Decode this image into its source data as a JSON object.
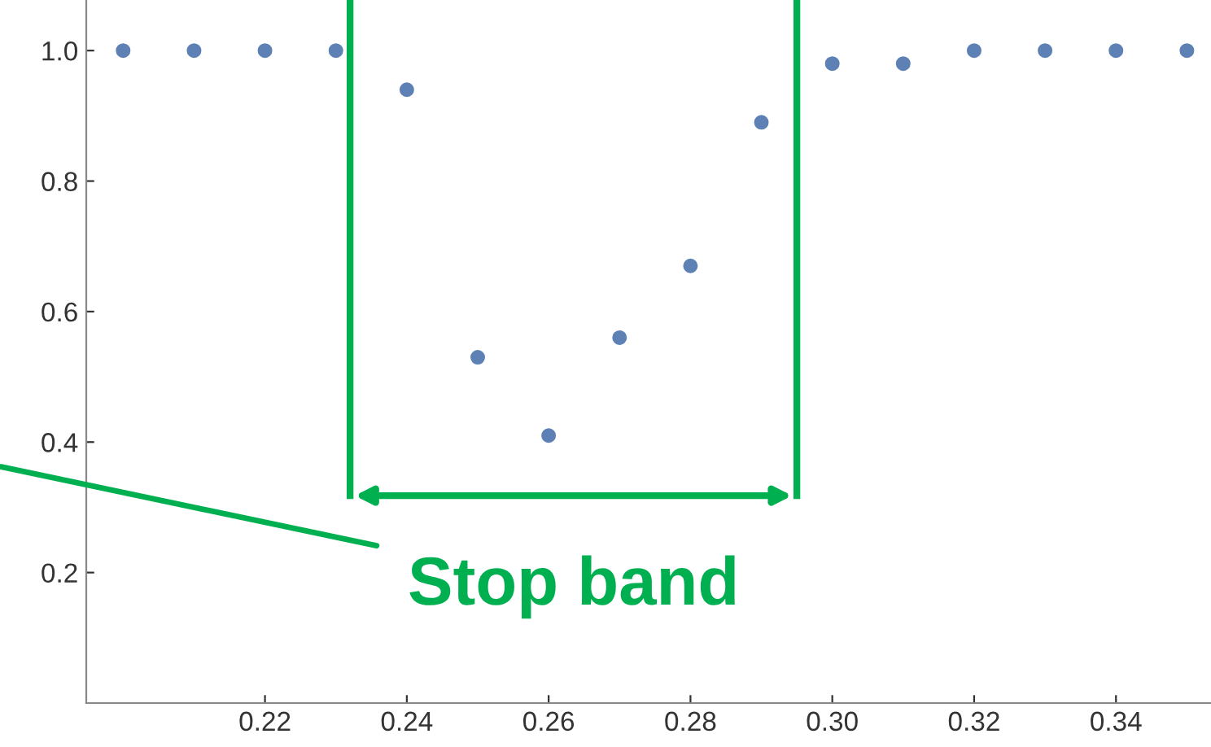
{
  "chart_data": {
    "type": "scatter",
    "x": [
      0.2,
      0.21,
      0.22,
      0.23,
      0.24,
      0.25,
      0.26,
      0.27,
      0.28,
      0.29,
      0.3,
      0.31,
      0.32,
      0.33,
      0.34,
      0.35
    ],
    "series": [
      {
        "color": "#5e81b5",
        "values": [
          1.0,
          1.0,
          1.0,
          1.0,
          0.94,
          0.53,
          0.41,
          0.56,
          0.67,
          0.89,
          0.98,
          0.98,
          1.0,
          1.0,
          1.0,
          1.0
        ]
      }
    ],
    "xlim": [
      0.1948,
      0.3534
    ],
    "ylim": [
      0,
      1.0775
    ],
    "xticks": [
      0.22,
      0.24,
      0.26,
      0.28,
      {
        "value": 0.3,
        "label": "0.30"
      },
      0.32,
      0.34
    ],
    "yticks": [
      {
        "value": 0.2,
        "label": "0.2"
      },
      {
        "value": 0.4,
        "label": "0.4"
      },
      {
        "value": 0.6,
        "label": "0.6"
      },
      {
        "value": 0.8,
        "label": "0.8"
      },
      {
        "value": 1.0,
        "label": "1.0"
      }
    ],
    "marker": "circle",
    "grid": false,
    "ref_lines": [
      {
        "axis": "x",
        "value": 0.232,
        "color": "#00b050"
      },
      {
        "axis": "x",
        "value": 0.295,
        "color": "#00b050"
      }
    ],
    "annotations": [
      "Stop band"
    ]
  }
}
